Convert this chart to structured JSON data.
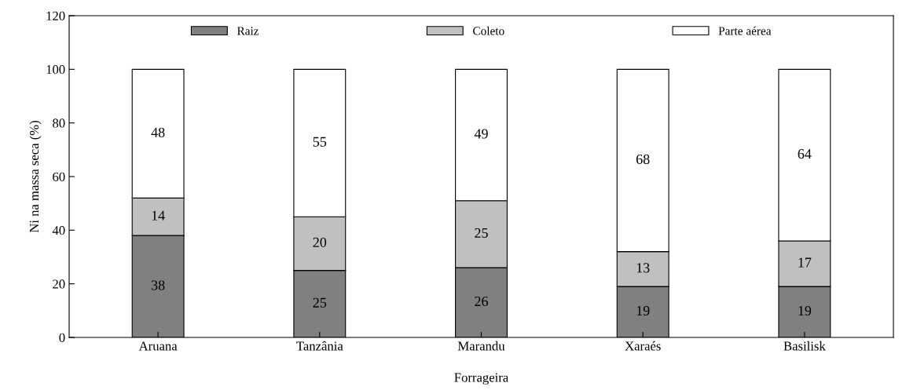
{
  "chart_data": {
    "type": "bar",
    "stacked": true,
    "xlabel": "Forrageira",
    "ylabel": "Ni na massa seca (%)",
    "categories": [
      "Aruana",
      "Tanzânia",
      "Marandu",
      "Xaraés",
      "Basilisk"
    ],
    "series": [
      {
        "name": "Raiz",
        "color": "#808080",
        "values": [
          38,
          25,
          26,
          19,
          19
        ]
      },
      {
        "name": "Coleto",
        "color": "#c0c0c0",
        "values": [
          14,
          20,
          25,
          13,
          17
        ]
      },
      {
        "name": "Parte aérea",
        "color": "#ffffff",
        "values": [
          48,
          55,
          49,
          68,
          64
        ]
      }
    ],
    "ylim": [
      0,
      120
    ],
    "yticks": [
      0,
      20,
      40,
      60,
      80,
      100,
      120
    ],
    "data_labels": true,
    "legend": "top",
    "grid": false
  }
}
